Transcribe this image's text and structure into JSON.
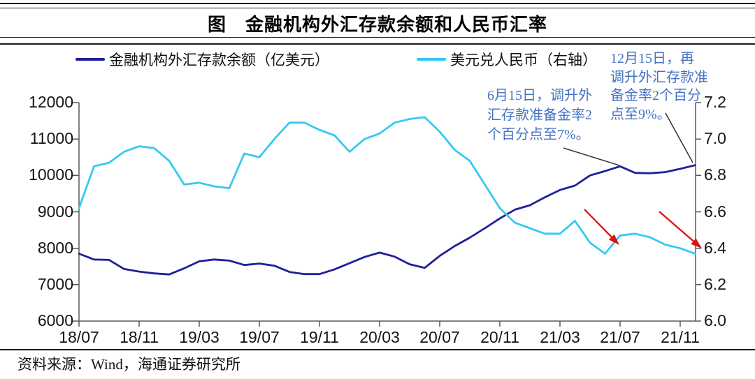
{
  "header": {
    "title": "图　金融机构外汇存款余额和人民币汇率"
  },
  "legend": {
    "items": [
      {
        "label": "金融机构外汇存款余额（亿美元）",
        "color": "#1F1F99"
      },
      {
        "label": "美元兑人民币（右轴）",
        "color": "#35C9F2"
      }
    ]
  },
  "annotations": [
    {
      "text": "6月15日，调升外\n汇存款准备金率2\n个百分点至7%。",
      "color": "#4472C4"
    },
    {
      "text": "12月15日，再\n调升外汇存款准\n备金率2个百分\n点至9%。",
      "color": "#4472C4"
    }
  ],
  "source_note": "资料来源：Wind，海通证券研究所",
  "theme": {
    "deposit_line": "#1F1F99",
    "fx_line": "#35C9F2",
    "annotation_blue": "#4472C4",
    "arrow_red": "#D81414",
    "callout_gray": "#3a3a3a",
    "axis_gray": "#595959"
  },
  "chart_data": {
    "type": "line",
    "title": "金融机构外汇存款余额和人民币汇率",
    "grid": false,
    "legend_position": "top",
    "categories": [
      "18/07",
      "18/08",
      "18/09",
      "18/10",
      "18/11",
      "18/12",
      "19/01",
      "19/02",
      "19/03",
      "19/04",
      "19/05",
      "19/06",
      "19/07",
      "19/08",
      "19/09",
      "19/10",
      "19/11",
      "19/12",
      "20/01",
      "20/02",
      "20/03",
      "20/04",
      "20/05",
      "20/06",
      "20/07",
      "20/08",
      "20/09",
      "20/10",
      "20/11",
      "20/12",
      "21/01",
      "21/02",
      "21/03",
      "21/04",
      "21/05",
      "21/06",
      "21/07",
      "21/08",
      "21/09",
      "21/10",
      "21/11",
      "21/12"
    ],
    "x_tick_labels": [
      "18/07",
      "18/11",
      "19/03",
      "19/07",
      "19/11",
      "20/03",
      "20/07",
      "20/11",
      "21/03",
      "21/07",
      "21/11"
    ],
    "series": [
      {
        "name": "金融机构外汇存款余额（亿美元）",
        "axis": "left",
        "color": "#1F1F99",
        "values": [
          7850,
          7690,
          7680,
          7430,
          7360,
          7310,
          7280,
          7450,
          7640,
          7690,
          7660,
          7540,
          7580,
          7520,
          7350,
          7290,
          7290,
          7420,
          7590,
          7760,
          7880,
          7770,
          7560,
          7460,
          7790,
          8060,
          8290,
          8550,
          8820,
          9060,
          9180,
          9400,
          9600,
          9720,
          10000,
          10120,
          10250,
          10070,
          10060,
          10090,
          10180,
          10280
        ]
      },
      {
        "name": "美元兑人民币（右轴）",
        "axis": "right",
        "color": "#35C9F2",
        "values": [
          6.62,
          6.85,
          6.87,
          6.93,
          6.96,
          6.95,
          6.88,
          6.75,
          6.76,
          6.74,
          6.73,
          6.92,
          6.9,
          7.0,
          7.09,
          7.09,
          7.05,
          7.02,
          6.93,
          7.0,
          7.03,
          7.09,
          7.11,
          7.12,
          7.04,
          6.94,
          6.88,
          6.75,
          6.62,
          6.54,
          6.51,
          6.48,
          6.48,
          6.55,
          6.43,
          6.37,
          6.47,
          6.48,
          6.46,
          6.42,
          6.4,
          6.37
        ]
      }
    ],
    "left_axis": {
      "label": "亿美元",
      "min": 6000,
      "max": 12000,
      "ticks": [
        "12000",
        "11000",
        "10000",
        "9000",
        "8000",
        "7000",
        "6000"
      ]
    },
    "right_axis": {
      "label": "美元兑人民币",
      "min": 6.0,
      "max": 7.2,
      "ticks": [
        "7.2",
        "7.0",
        "6.8",
        "6.6",
        "6.4",
        "6.2",
        "6.0"
      ]
    }
  }
}
